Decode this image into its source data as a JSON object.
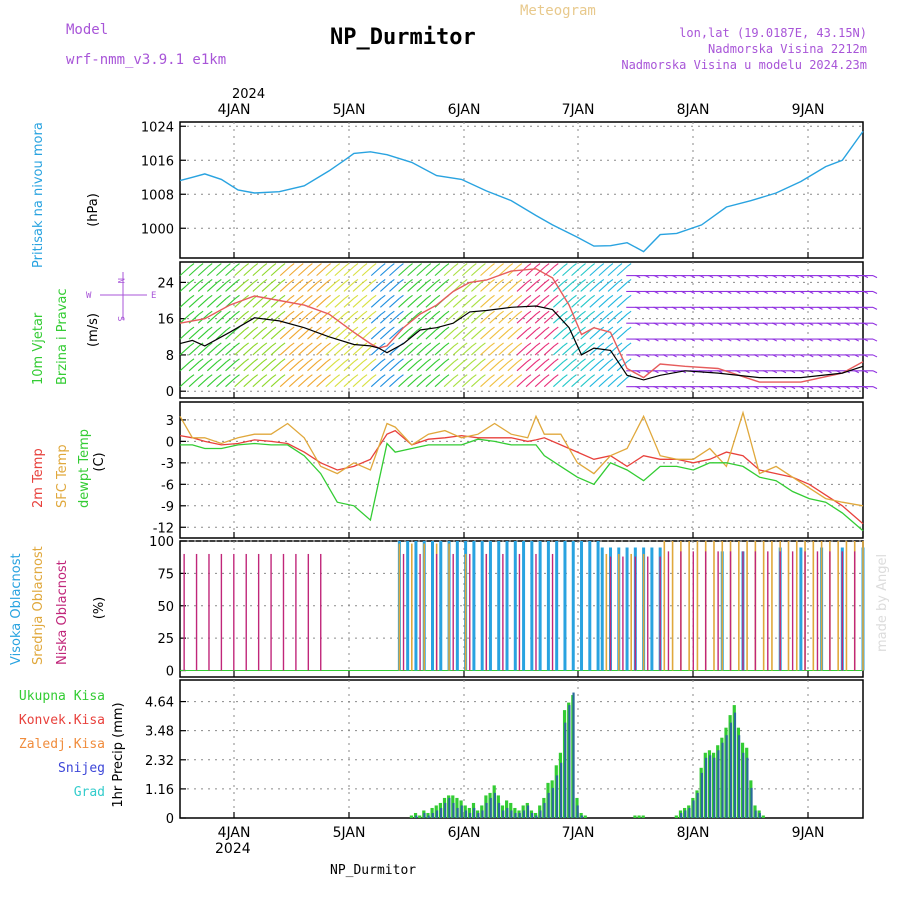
{
  "header": {
    "model_label": "Model",
    "model_name": "wrf-nmm_v3.9.1  e1km",
    "title": "NP_Durmitor",
    "subtitle": "Meteogram",
    "location": "lon,lat (19.0187E, 43.15N)",
    "elevation": "Nadmorska Visina 2212m",
    "model_elevation": "Nadmorska Visina u modelu 2024.23m",
    "footer": "NP_Durmitor",
    "watermark": "made by Angel"
  },
  "colors": {
    "pressure": "#29a3e0",
    "temp2m": "#e8413c",
    "sfc_temp": "#e0a83c",
    "dewpoint": "#33cc33",
    "wind_speed": "#000000",
    "gust": "#e65c5c",
    "high_cloud": "#29a3e0",
    "mid_cloud": "#e0a83c",
    "low_cloud": "#c0267a",
    "total_precip": "#33cc33",
    "conv_precip": "#e8413c",
    "frozen_precip": "#f08c3c",
    "snow": "#3c46d8",
    "graupel": "#33cccc",
    "label_purple": "#a855d8",
    "label_cyan": "#29a3e0",
    "label_green": "#33cc33"
  },
  "time_axis": {
    "year": "2024",
    "days": [
      "4JAN",
      "5JAN",
      "6JAN",
      "7JAN",
      "8JAN",
      "9JAN"
    ]
  },
  "panels": {
    "pressure": {
      "label1": "Pritisak na nivou mora",
      "unit": "(hPa)"
    },
    "wind": {
      "label1": "10m Vjetar",
      "label2": "Brzina i Pravac",
      "unit": "(m/s)",
      "compass_n": "N",
      "compass_s": "S",
      "compass_w": "W",
      "compass_e": "E"
    },
    "temp": {
      "label1": "2m Temp",
      "label2": "SFC Temp",
      "label3": "dewpt Temp",
      "unit": "(C)"
    },
    "cloud": {
      "label1": "Visoka Oblacnost",
      "label2": "Srednja Oblacnost",
      "label3": "Niska Oblacnost",
      "unit": "(%)"
    },
    "precip": {
      "legend": [
        "Ukupna Kisa",
        "Konvek.Kisa",
        "Zaledj.Kisa",
        "Snijeg",
        "Grad"
      ],
      "unit": "1hr Precip (mm)"
    }
  },
  "chart_data": [
    {
      "type": "line",
      "name": "pressure",
      "ylabel": "(hPa)",
      "ylim": [
        993,
        1025
      ],
      "yticks": [
        "1024",
        "1016",
        "1008",
        "1000"
      ],
      "ytick_values": [
        1024,
        1016,
        1008,
        1000
      ],
      "x_hours": [
        0,
        3,
        6,
        10,
        14,
        18,
        24,
        30,
        36,
        40,
        42,
        46,
        50,
        56,
        62,
        68,
        74,
        80,
        86,
        90,
        96,
        100,
        104,
        108,
        112,
        116,
        120,
        126,
        132,
        138,
        144,
        150,
        156,
        160,
        165
      ],
      "values": [
        1011.2,
        1012.0,
        1012.8,
        1011.5,
        1009.0,
        1008.3,
        1008.6,
        1010.0,
        1013.5,
        1016.2,
        1017.6,
        1018.0,
        1017.3,
        1015.5,
        1012.4,
        1011.5,
        1008.8,
        1006.5,
        1003.0,
        1000.8,
        997.9,
        995.8,
        995.9,
        996.6,
        994.5,
        998.5,
        998.8,
        1000.8,
        1005.0,
        1006.5,
        1008.3,
        1011.0,
        1014.5,
        1016.0,
        1022.8
      ]
    },
    {
      "type": "line",
      "name": "wind",
      "ylabel": "(m/s)",
      "ylim": [
        -1.5,
        28.5
      ],
      "yticks": [
        "24",
        "16",
        "8",
        "0"
      ],
      "ytick_values": [
        24,
        16,
        8,
        0
      ],
      "x_hours": [
        0,
        3,
        6,
        12,
        18,
        24,
        30,
        36,
        42,
        46,
        48,
        50,
        54,
        58,
        62,
        66,
        70,
        74,
        80,
        86,
        90,
        94,
        97,
        100,
        104,
        108,
        112,
        116,
        122,
        130,
        140,
        150,
        160,
        165
      ],
      "series": [
        {
          "name": "speed",
          "values": [
            10.5,
            11.2,
            10.0,
            13.0,
            16.2,
            15.5,
            14.0,
            12.0,
            10.3,
            10.0,
            9.5,
            8.5,
            10.5,
            13.5,
            14.0,
            15.0,
            17.5,
            17.8,
            18.5,
            18.8,
            18.0,
            14.0,
            8.0,
            9.5,
            9.0,
            3.5,
            2.5,
            3.5,
            4.5,
            4.0,
            3.0,
            3.0,
            4.0,
            5.5
          ]
        },
        {
          "name": "gust",
          "values": [
            15.0,
            15.5,
            16.0,
            19.0,
            21.0,
            20.0,
            19.0,
            17.0,
            13.0,
            10.5,
            9.5,
            10.0,
            14.0,
            17.0,
            19.0,
            22.0,
            24.0,
            24.5,
            26.5,
            27.0,
            25.0,
            19.0,
            12.5,
            14.0,
            13.0,
            5.0,
            3.0,
            6.0,
            5.5,
            5.0,
            2.0,
            2.0,
            4.0,
            6.5
          ]
        }
      ]
    },
    {
      "type": "line",
      "name": "temperature",
      "ylabel": "(C)",
      "ylim": [
        -13.5,
        5.5
      ],
      "yticks": [
        "3",
        "0",
        "-3",
        "-6",
        "-9",
        "-12"
      ],
      "ytick_values": [
        3,
        0,
        -3,
        -6,
        -9,
        -12
      ],
      "x_hours": [
        0,
        3,
        6,
        10,
        14,
        18,
        22,
        26,
        30,
        34,
        38,
        42,
        46,
        50,
        52,
        56,
        60,
        64,
        68,
        72,
        76,
        80,
        84,
        86,
        88,
        92,
        96,
        100,
        104,
        108,
        112,
        116,
        120,
        124,
        128,
        132,
        136,
        140,
        144,
        148,
        152,
        156,
        160,
        165
      ],
      "series": [
        {
          "name": "2m Temp",
          "values": [
            0.8,
            0.5,
            0.0,
            -0.5,
            -0.3,
            0.2,
            0.0,
            -0.3,
            -1.5,
            -3.0,
            -4.0,
            -3.5,
            -2.5,
            1.0,
            1.5,
            -0.5,
            0.3,
            0.5,
            0.8,
            0.5,
            0.5,
            0.5,
            0.0,
            0.2,
            0.5,
            -0.5,
            -1.5,
            -2.5,
            -2.0,
            -3.5,
            -2.0,
            -2.5,
            -2.5,
            -3.0,
            -2.5,
            -1.5,
            -2.0,
            -4.0,
            -4.5,
            -5.0,
            -6.0,
            -7.5,
            -9.0,
            -11.5
          ]
        },
        {
          "name": "SFC Temp",
          "values": [
            3.5,
            0.5,
            0.5,
            -0.3,
            0.5,
            1.0,
            1.0,
            2.5,
            0.5,
            -3.5,
            -4.5,
            -3.0,
            -4.0,
            2.5,
            2.0,
            -0.5,
            1.0,
            1.5,
            0.5,
            1.0,
            2.5,
            1.0,
            0.5,
            3.5,
            1.0,
            1.0,
            -3.0,
            -4.5,
            -2.0,
            -1.0,
            3.5,
            -2.0,
            -2.5,
            -2.5,
            -1.0,
            -3.5,
            4.0,
            -4.5,
            -3.5,
            -5.0,
            -6.5,
            -8.0,
            -8.5,
            -9.0
          ]
        },
        {
          "name": "dewpt Temp",
          "values": [
            -0.5,
            -0.5,
            -1.0,
            -1.0,
            -0.5,
            -0.3,
            -0.5,
            -0.5,
            -2.0,
            -4.5,
            -8.5,
            -9.0,
            -11.0,
            -0.3,
            -1.5,
            -1.0,
            -0.5,
            -0.5,
            -0.5,
            0.3,
            0.0,
            -0.5,
            -0.5,
            -0.5,
            -2.0,
            -3.5,
            -5.0,
            -6.0,
            -3.0,
            -4.0,
            -5.5,
            -3.5,
            -3.5,
            -4.0,
            -3.0,
            -3.0,
            -3.5,
            -5.0,
            -5.5,
            -7.0,
            -8.0,
            -8.5,
            -10.0,
            -12.5
          ]
        }
      ]
    },
    {
      "type": "bar",
      "name": "cloud_cover",
      "ylabel": "(%)",
      "ylim": [
        -5,
        100
      ],
      "yticks": [
        "100",
        "75",
        "50",
        "25",
        "0"
      ],
      "ytick_values": [
        100,
        75,
        50,
        25,
        0
      ],
      "series": [
        {
          "name": "Visoka Oblacnost",
          "segments": [
            [
              53,
              102,
              100,
              2
            ],
            [
              102,
              116,
              95,
              2
            ],
            [
              131,
              140,
              92,
              5
            ],
            [
              145,
              165,
              95,
              5
            ]
          ]
        },
        {
          "name": "Srednja Oblacnost",
          "segments": [
            [
              53,
              66,
              98,
              3
            ],
            [
              69,
              78,
              90,
              5
            ],
            [
              103,
              112,
              90,
              3
            ],
            [
              117,
              165,
              100,
              2
            ]
          ]
        },
        {
          "name": "Niska Oblacnost",
          "segments": [
            [
              1,
              34,
              90,
              3
            ],
            [
              54,
              93,
              90,
              4
            ],
            [
              104,
              116,
              88,
              3
            ],
            [
              118,
              165,
              92,
              3
            ]
          ]
        }
      ]
    },
    {
      "type": "bar",
      "name": "precipitation",
      "ylabel": "1hr Precip (mm)",
      "ylim": [
        0,
        5.5
      ],
      "yticks": [
        "4.64",
        "3.48",
        "2.32",
        "1.16",
        "0"
      ],
      "ytick_values": [
        4.64,
        3.48,
        2.32,
        1.16,
        0
      ],
      "x_hours": [
        56,
        57,
        58,
        59,
        60,
        61,
        62,
        63,
        64,
        65,
        66,
        67,
        68,
        69,
        70,
        71,
        72,
        73,
        74,
        75,
        76,
        77,
        78,
        79,
        80,
        81,
        82,
        83,
        84,
        85,
        86,
        87,
        88,
        89,
        90,
        91,
        92,
        93,
        94,
        95,
        96,
        97,
        98,
        99,
        100,
        101,
        102,
        103,
        104,
        105,
        106,
        107,
        108,
        109,
        110,
        111,
        112,
        113,
        114,
        115,
        116,
        117,
        118,
        119,
        120,
        121,
        122,
        123,
        124,
        125,
        126,
        127,
        128,
        129,
        130,
        131,
        132,
        133,
        134,
        135,
        136,
        137,
        138,
        139,
        140,
        141,
        142,
        143
      ],
      "series": [
        {
          "name": "Ukupna Kisa",
          "values": [
            0.1,
            0.2,
            0.1,
            0.3,
            0.2,
            0.4,
            0.5,
            0.6,
            0.8,
            0.9,
            0.9,
            0.8,
            0.7,
            0.5,
            0.4,
            0.6,
            0.3,
            0.5,
            0.9,
            1.0,
            1.3,
            0.9,
            0.5,
            0.7,
            0.6,
            0.4,
            0.3,
            0.5,
            0.6,
            0.3,
            0.2,
            0.5,
            0.8,
            1.4,
            1.5,
            2.1,
            2.6,
            4.3,
            4.6,
            4.9,
            0.8,
            0.2,
            0.1,
            0.0,
            0.0,
            0.0,
            0.0,
            0.0,
            0.0,
            0.0,
            0.0,
            0.0,
            0.0,
            0.0,
            0.1,
            0.1,
            0.1,
            0.0,
            0.0,
            0.0,
            0.0,
            0.0,
            0.0,
            0.0,
            0.1,
            0.3,
            0.4,
            0.5,
            0.8,
            1.1,
            2.0,
            2.6,
            2.7,
            2.6,
            2.9,
            3.2,
            3.6,
            4.1,
            4.5,
            3.6,
            3.0,
            2.8,
            1.5,
            0.5,
            0.3,
            0.1,
            0.0,
            0.0
          ]
        },
        {
          "name": "Snijeg",
          "values": [
            0.0,
            0.1,
            0.0,
            0.2,
            0.1,
            0.2,
            0.3,
            0.4,
            0.6,
            0.8,
            0.6,
            0.4,
            0.5,
            0.3,
            0.2,
            0.4,
            0.2,
            0.3,
            0.6,
            0.8,
            1.0,
            0.6,
            0.3,
            0.4,
            0.3,
            0.2,
            0.2,
            0.3,
            0.5,
            0.2,
            0.1,
            0.3,
            0.6,
            1.0,
            1.2,
            1.7,
            2.2,
            3.8,
            4.5,
            5.0,
            0.5,
            0.1,
            0.0,
            0.0,
            0.0,
            0.0,
            0.0,
            0.0,
            0.0,
            0.0,
            0.0,
            0.0,
            0.0,
            0.0,
            0.0,
            0.0,
            0.0,
            0.0,
            0.0,
            0.0,
            0.0,
            0.0,
            0.0,
            0.0,
            0.0,
            0.2,
            0.3,
            0.4,
            0.7,
            1.0,
            1.8,
            2.4,
            2.5,
            2.4,
            2.7,
            3.0,
            3.3,
            3.8,
            4.2,
            3.3,
            2.6,
            2.4,
            1.2,
            0.3,
            0.2,
            0.0,
            0.0,
            0.0
          ]
        }
      ]
    }
  ]
}
